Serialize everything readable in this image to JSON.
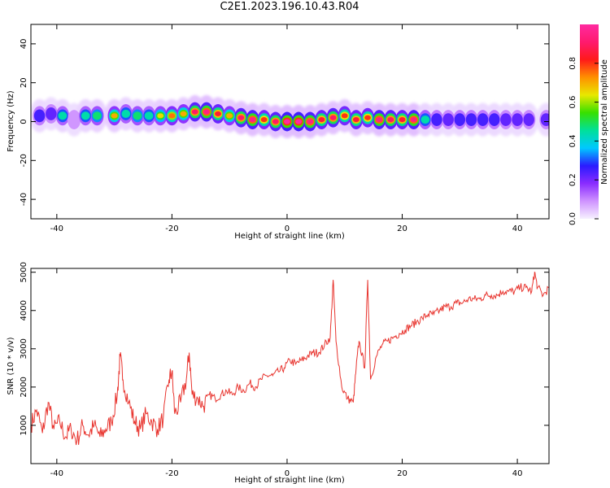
{
  "page": {
    "title": "C2E1.2023.196.10.43.R04"
  },
  "colors": {
    "snr_line": "#e8352f",
    "frame": "#000000",
    "background": "#ffffff"
  },
  "chart_data": [
    {
      "type": "heatmap",
      "xlabel": "Height of straight line (km)",
      "ylabel": "Frequency (Hz)",
      "xlim": [
        -44.5,
        45.5
      ],
      "ylim": [
        -50,
        50
      ],
      "xticks": [
        "-40",
        "-20",
        "0",
        "20",
        "40"
      ],
      "xtick_values": [
        -40,
        -20,
        0,
        20,
        40
      ],
      "yticks": [
        "40",
        "20",
        "0",
        "-20",
        "-40"
      ],
      "ytick_values": [
        40,
        20,
        0,
        -20,
        -40
      ],
      "grid": false,
      "colorbar": {
        "label": "Normalized spectral amplitude",
        "range": [
          0,
          1
        ],
        "ticks": [
          "0.0",
          "0.2",
          "0.4",
          "0.6",
          "0.8"
        ],
        "tick_values": [
          0.0,
          0.2,
          0.4,
          0.6,
          0.8
        ],
        "colormap": [
          "#f6f0ff",
          "#cf93ff",
          "#8a2cff",
          "#2a1bff",
          "#00c8ff",
          "#00e09a",
          "#37e000",
          "#e8e800",
          "#ff9000",
          "#ff1a1a",
          "#ff1a6e",
          "#ff2aa0"
        ]
      },
      "ridge": {
        "x": [
          -43,
          -41,
          -39,
          -37,
          -35,
          -33,
          -30,
          -28,
          -26,
          -24,
          -22,
          -20,
          -18,
          -16,
          -14,
          -12,
          -10,
          -8,
          -6,
          -4,
          -2,
          0,
          2,
          4,
          6,
          8,
          10,
          12,
          14,
          16,
          18,
          20,
          22,
          24,
          26,
          28,
          30,
          32,
          34,
          36,
          38,
          40,
          42,
          45
        ],
        "frequency": [
          3,
          4,
          3,
          1,
          3,
          3,
          3,
          4,
          3,
          3,
          3,
          3,
          4,
          5,
          5,
          4,
          3,
          2,
          1,
          1,
          0,
          0,
          0,
          0,
          1,
          2,
          3,
          1,
          2,
          1,
          1,
          1,
          1,
          1,
          1,
          1,
          1,
          1,
          1,
          1,
          1,
          1,
          1,
          1
        ],
        "amplitude": [
          0.45,
          0.4,
          0.55,
          0.35,
          0.55,
          0.6,
          0.7,
          0.55,
          0.6,
          0.55,
          0.65,
          0.75,
          0.7,
          0.9,
          0.95,
          0.85,
          0.7,
          0.9,
          0.95,
          0.8,
          0.9,
          1.0,
          1.0,
          0.95,
          0.85,
          0.9,
          0.8,
          0.85,
          0.8,
          0.95,
          0.9,
          0.85,
          0.95,
          0.55,
          0.45,
          0.4,
          0.45,
          0.45,
          0.45,
          0.45,
          0.4,
          0.4,
          0.4,
          0.4
        ]
      }
    },
    {
      "type": "line",
      "xlabel": "Height of straight line (km)",
      "ylabel": "SNR (10 * v/v)",
      "xlim": [
        -44.5,
        45.5
      ],
      "ylim": [
        0,
        5100
      ],
      "xticks": [
        "-40",
        "-20",
        "0",
        "20",
        "40"
      ],
      "xtick_values": [
        -40,
        -20,
        0,
        20,
        40
      ],
      "yticks": [
        "5000",
        "4000",
        "3000",
        "2000",
        "1000"
      ],
      "ytick_values": [
        5000,
        4000,
        3000,
        2000,
        1000
      ],
      "grid": false,
      "series": [
        {
          "x": [
            -44.5,
            -43.5,
            -42.5,
            -41.5,
            -40.5,
            -39.5,
            -38.5,
            -37.5,
            -36.5,
            -35.5,
            -34.5,
            -33.5,
            -32.5,
            -31.5,
            -30.5,
            -29.5,
            -29,
            -28.5,
            -27.5,
            -26.5,
            -25.5,
            -24.5,
            -23.5,
            -22.5,
            -21.5,
            -20.5,
            -20,
            -19.5,
            -18.5,
            -17.5,
            -17,
            -16.5,
            -15.5,
            -14.5,
            -13.5,
            -12.5,
            -11.5,
            -10.5,
            -9.5,
            -8.5,
            -7.5,
            -6.5,
            -5.5,
            -4.5,
            -3.5,
            -2.5,
            -1.5,
            -0.5,
            0.5,
            1.5,
            2.5,
            3.5,
            4.5,
            5.5,
            6.5,
            7.5,
            8,
            8.5,
            9.5,
            10.5,
            11.5,
            12,
            12.5,
            13.5,
            14,
            14.5,
            15.5,
            16.5,
            17.5,
            18.5,
            19.5,
            20.5,
            21.5,
            22.5,
            23.5,
            24.5,
            25.5,
            26.5,
            27.5,
            28.5,
            29.5,
            30.5,
            31.5,
            32.5,
            33.5,
            34.5,
            35.5,
            36.5,
            37.5,
            38.5,
            39.5,
            40.5,
            41.5,
            42.5,
            43,
            43.5,
            44.5,
            45.5
          ],
          "values": [
            1000,
            1400,
            800,
            1600,
            900,
            1100,
            700,
            900,
            600,
            1000,
            750,
            1000,
            700,
            900,
            1100,
            1800,
            2800,
            2200,
            1600,
            1100,
            900,
            1300,
            1100,
            900,
            1200,
            2200,
            2400,
            1300,
            1600,
            2200,
            2900,
            1800,
            1700,
            1500,
            1800,
            1700,
            1800,
            1900,
            1800,
            2000,
            1900,
            2100,
            2000,
            2200,
            2300,
            2300,
            2400,
            2500,
            2700,
            2600,
            2700,
            2800,
            2900,
            2900,
            3100,
            3300,
            4800,
            3200,
            2000,
            1700,
            1600,
            2500,
            3200,
            2500,
            4800,
            2200,
            2800,
            3100,
            3200,
            3300,
            3400,
            3500,
            3600,
            3700,
            3800,
            3900,
            3900,
            4000,
            4100,
            4100,
            4200,
            4200,
            4300,
            4300,
            4300,
            4400,
            4400,
            4400,
            4500,
            4500,
            4500,
            4600,
            4600,
            4500,
            5000,
            4600,
            4400,
            4600
          ]
        }
      ]
    }
  ]
}
